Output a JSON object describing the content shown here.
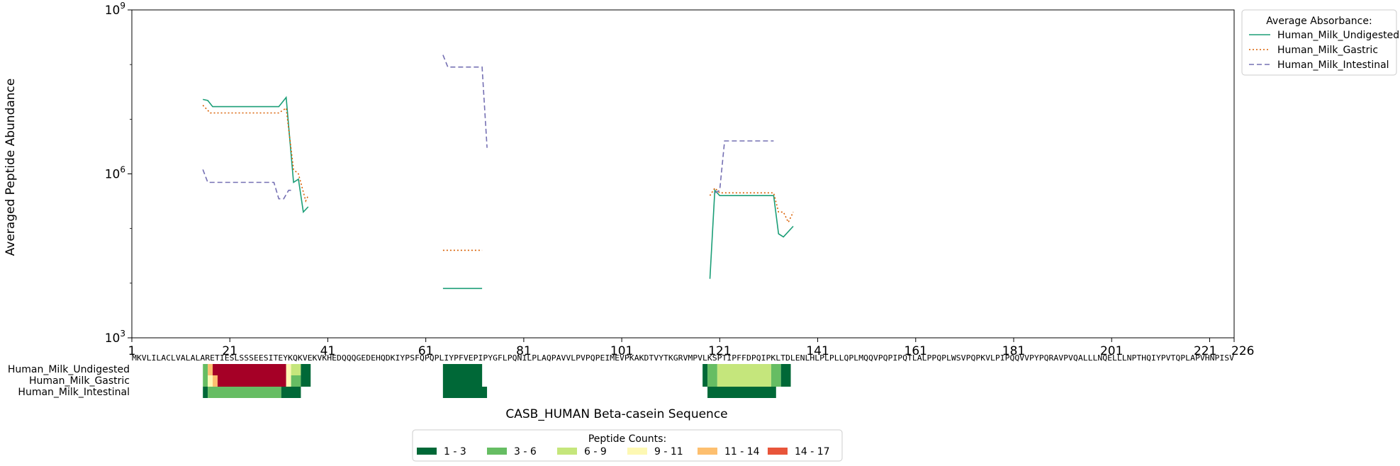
{
  "chart_data": {
    "type": "line",
    "title": "",
    "xlabel": "CASB_HUMAN Beta-casein Sequence",
    "ylabel": "Averaged Peptide Abundance",
    "yscale": "log",
    "ylim": [
      1000,
      1000000000
    ],
    "xlim": [
      1,
      226
    ],
    "y_ticks": [
      {
        "value": 1000,
        "label": "10^3"
      },
      {
        "value": 1000000,
        "label": "10^6"
      },
      {
        "value": 1000000000,
        "label": "10^9"
      }
    ],
    "x_ticks": [
      1,
      21,
      41,
      61,
      81,
      101,
      121,
      141,
      161,
      181,
      201,
      221,
      226
    ],
    "x_tick_labels": [
      "1",
      "21",
      "41",
      "61",
      "81",
      "101",
      "121",
      "141",
      "161",
      "181",
      "201",
      "221",
      "226"
    ],
    "sequence": "MKVLILACLVALALARETIESLSSSEESITEYKQKVEKVKHEDQQQGEDEHQDKIYPSFQPQPLIYPFVEPIPYGFLPQNILPLAQPAVVLPVPQPEIMEVPKAKDTVYTKGRVMPVLKSPTIPFFDPQIPKLTDLENLHLPLPLLQPLMQQVPQPIPQTLALPPQPLWSVPQPKVLPIPQQVVPYPQRAVPVQALLLNQELLLNPTHQIYPVTQPLAPVHNPISV",
    "legend": {
      "title": "Average Absorbance:",
      "placement": "outside-top-right"
    },
    "grid": false,
    "series": [
      {
        "name": "Human_Milk_Undigested",
        "color": "#1b9e77",
        "dash": "solid",
        "segments": [
          [
            [
              15.5,
              23000000.0
            ],
            [
              16.5,
              22000000.0
            ],
            [
              17.5,
              17000000.0
            ],
            [
              31,
              17000000.0
            ],
            [
              32.5,
              25000000.0
            ],
            [
              34,
              700000.0
            ],
            [
              35,
              800000.0
            ],
            [
              36,
              200000.0
            ],
            [
              37,
              250000.0
            ]
          ],
          [
            [
              64.5,
              8000
            ],
            [
              72.5,
              8000
            ]
          ],
          [
            [
              119,
              12000.0
            ],
            [
              120,
              500000.0
            ],
            [
              121,
              400000.0
            ],
            [
              132,
              400000.0
            ],
            [
              133,
              80000.0
            ],
            [
              134,
              70000.0
            ],
            [
              136,
              110000.0
            ]
          ]
        ]
      },
      {
        "name": "Human_Milk_Gastric",
        "color": "#d95f02",
        "dash": "dotted",
        "segments": [
          [
            [
              15.5,
              18000000.0
            ],
            [
              17,
              13000000.0
            ],
            [
              31,
              13000000.0
            ],
            [
              32.5,
              16000000.0
            ],
            [
              34,
              1200000.0
            ],
            [
              35,
              1000000.0
            ],
            [
              36.5,
              320000.0
            ],
            [
              37,
              400000.0
            ]
          ],
          [
            [
              64.5,
              40000.0
            ],
            [
              72.5,
              40000.0
            ]
          ],
          [
            [
              119,
              400000.0
            ],
            [
              120,
              550000.0
            ],
            [
              121,
              450000.0
            ],
            [
              132,
              450000.0
            ],
            [
              133,
              200000.0
            ],
            [
              134,
              200000.0
            ],
            [
              135,
              130000.0
            ],
            [
              136,
              200000.0
            ]
          ]
        ]
      },
      {
        "name": "Human_Milk_Intestinal",
        "color": "#7570b3",
        "dash": "dashed",
        "segments": [
          [
            [
              15.5,
              1200000.0
            ],
            [
              16.5,
              700000.0
            ],
            [
              30,
              700000.0
            ],
            [
              31,
              350000.0
            ],
            [
              32,
              350000.0
            ],
            [
              33,
              500000.0
            ],
            [
              34,
              500000.0
            ]
          ],
          [
            [
              64.5,
              150000000.0
            ],
            [
              65.5,
              90000000.0
            ],
            [
              72.5,
              90000000.0
            ],
            [
              73.5,
              3000000.0
            ]
          ],
          [
            [
              120,
              450000.0
            ],
            [
              121,
              500000.0
            ],
            [
              122,
              4000000.0
            ],
            [
              132,
              4000000.0
            ]
          ]
        ]
      }
    ],
    "heatmap": {
      "rows": [
        {
          "name": "Human_Milk_Undigested",
          "cells": [
            {
              "from": 16,
              "to": 16,
              "count": 5
            },
            {
              "from": 17,
              "to": 17,
              "count": 13
            },
            {
              "from": 18,
              "to": 32,
              "count": 17
            },
            {
              "from": 33,
              "to": 33,
              "count": 10
            },
            {
              "from": 34,
              "to": 35,
              "count": 8
            },
            {
              "from": 36,
              "to": 37,
              "count": 2
            },
            {
              "from": 65,
              "to": 72,
              "count": 2
            },
            {
              "from": 118,
              "to": 118,
              "count": 2
            },
            {
              "from": 119,
              "to": 120,
              "count": 4
            },
            {
              "from": 121,
              "to": 131,
              "count": 7
            },
            {
              "from": 132,
              "to": 133,
              "count": 4
            },
            {
              "from": 134,
              "to": 135,
              "count": 2
            }
          ]
        },
        {
          "name": "Human_Milk_Gastric",
          "cells": [
            {
              "from": 16,
              "to": 16,
              "count": 5
            },
            {
              "from": 17,
              "to": 17,
              "count": 11
            },
            {
              "from": 18,
              "to": 18,
              "count": 14
            },
            {
              "from": 19,
              "to": 32,
              "count": 17
            },
            {
              "from": 33,
              "to": 33,
              "count": 10
            },
            {
              "from": 34,
              "to": 35,
              "count": 5
            },
            {
              "from": 36,
              "to": 37,
              "count": 2
            },
            {
              "from": 65,
              "to": 72,
              "count": 2
            },
            {
              "from": 118,
              "to": 118,
              "count": 2
            },
            {
              "from": 119,
              "to": 120,
              "count": 4
            },
            {
              "from": 121,
              "to": 131,
              "count": 7
            },
            {
              "from": 132,
              "to": 133,
              "count": 4
            },
            {
              "from": 134,
              "to": 135,
              "count": 2
            }
          ]
        },
        {
          "name": "Human_Milk_Intestinal",
          "cells": [
            {
              "from": 16,
              "to": 16,
              "count": 2
            },
            {
              "from": 17,
              "to": 31,
              "count": 5
            },
            {
              "from": 32,
              "to": 35,
              "count": 2
            },
            {
              "from": 65,
              "to": 73,
              "count": 2
            },
            {
              "from": 119,
              "to": 132,
              "count": 2
            }
          ]
        }
      ],
      "legend_title": "Peptide Counts:",
      "bins": [
        {
          "label": "1 - 3",
          "color": "#006837"
        },
        {
          "label": "3 - 6",
          "color": "#66bd63"
        },
        {
          "label": "6 - 9",
          "color": "#c5e67c"
        },
        {
          "label": "9 - 11",
          "color": "#fdf8b3"
        },
        {
          "label": "11 - 14",
          "color": "#fdbf6f"
        },
        {
          "label": "14 - 17",
          "color": "#e8553a"
        }
      ],
      "max_color": "#a50026"
    }
  }
}
